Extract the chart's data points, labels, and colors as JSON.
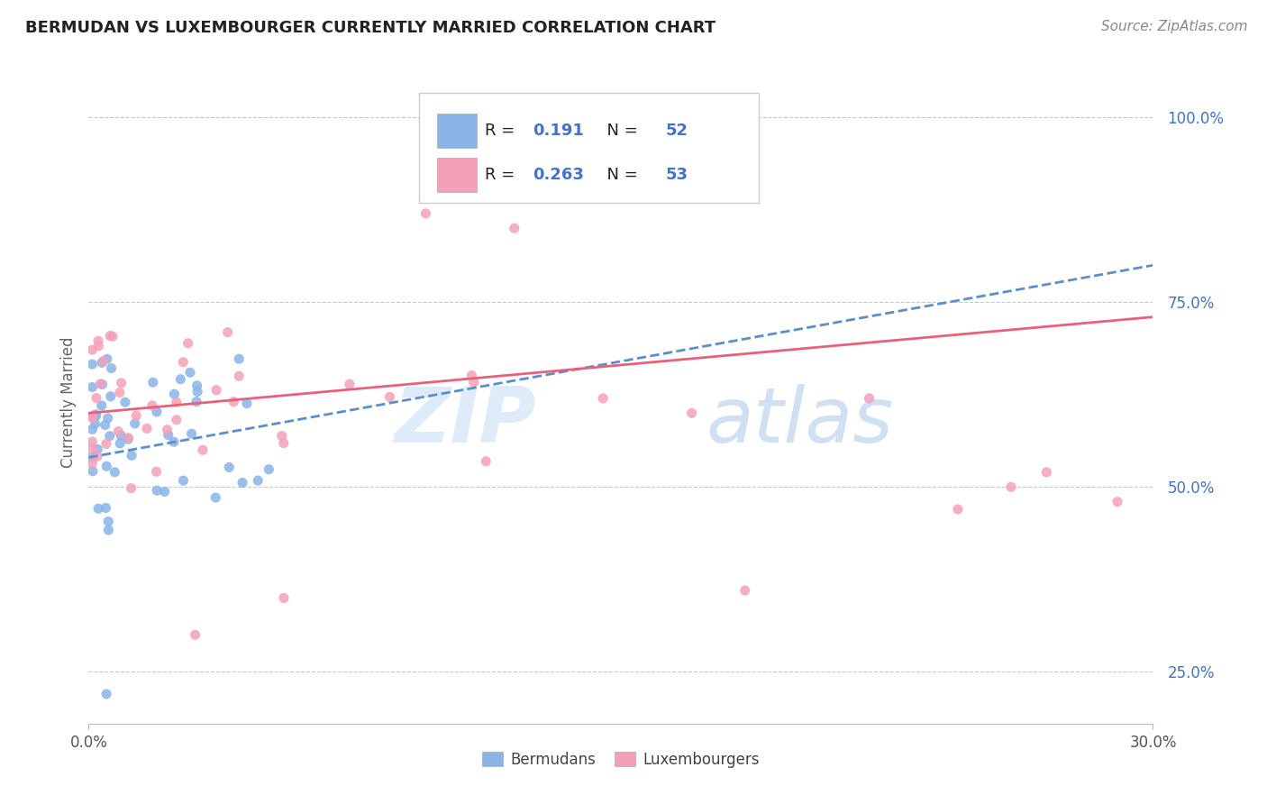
{
  "title": "BERMUDAN VS LUXEMBOURGER CURRENTLY MARRIED CORRELATION CHART",
  "source": "Source: ZipAtlas.com",
  "ylabel": "Currently Married",
  "xlim": [
    0.0,
    0.3
  ],
  "ylim": [
    0.18,
    1.05
  ],
  "ytick_values": [
    0.25,
    0.5,
    0.75,
    1.0
  ],
  "R_bermudan": 0.191,
  "N_bermudan": 52,
  "R_luxembourger": 0.263,
  "N_luxembourger": 53,
  "color_bermudan": "#8ab4e8",
  "color_luxembourger": "#f4a0b8",
  "line_color_bermudan": "#5b8fc9",
  "line_color_luxembourger": "#e8607a",
  "watermark_zip": "ZIP",
  "watermark_atlas": "atlas",
  "legend_text_color": "#4472c4",
  "legend_R_color": "#4472c4",
  "legend_N_color": "#4472c4"
}
